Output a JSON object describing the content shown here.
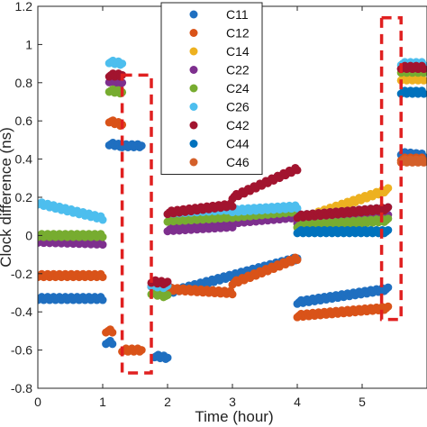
{
  "chart_data": {
    "type": "scatter",
    "title": "",
    "xlabel": "Time (hour)",
    "ylabel": "Clock difference (ns)",
    "xlim": [
      0,
      6
    ],
    "ylim": [
      -0.8,
      1.2
    ],
    "xticks": [
      0,
      1,
      2,
      3,
      4,
      5
    ],
    "yticks": [
      -0.8,
      -0.6,
      -0.4,
      -0.2,
      0,
      0.2,
      0.4,
      0.6,
      0.8,
      1,
      1.2
    ],
    "xtick_labels": [
      "0",
      "1",
      "2",
      "3",
      "4",
      "5"
    ],
    "ytick_labels": [
      "-0.8",
      "-0.6",
      "-0.4",
      "-0.2",
      "0",
      "0.2",
      "0.4",
      "0.6",
      "0.8",
      "1",
      "1.2"
    ],
    "grid": false,
    "legend_position": "top-center",
    "highlight_boxes": [
      {
        "x": [
          1.3,
          1.75
        ],
        "y": [
          -0.72,
          0.84
        ],
        "color": "#e02020"
      },
      {
        "x": [
          5.3,
          5.6
        ],
        "y": [
          -0.44,
          1.14
        ],
        "color": "#e02020"
      }
    ],
    "series": [
      {
        "name": "C11",
        "color": "#1f6fc0",
        "segments": [
          {
            "x": [
              0.0,
              1.0
            ],
            "y": [
              -0.33,
              -0.33
            ]
          },
          {
            "x": [
              1.05,
              1.15
            ],
            "y": [
              -0.56,
              -0.56
            ]
          },
          {
            "x": [
              1.1,
              1.3
            ],
            "y": [
              0.48,
              0.47
            ]
          },
          {
            "x": [
              1.3,
              1.6
            ],
            "y": [
              0.47,
              0.47
            ]
          },
          {
            "x": [
              1.8,
              2.0
            ],
            "y": [
              -0.63,
              -0.64
            ]
          },
          {
            "x": [
              2.0,
              4.0
            ],
            "y": [
              -0.3,
              -0.12
            ]
          },
          {
            "x": [
              4.0,
              5.4
            ],
            "y": [
              -0.35,
              -0.28
            ]
          },
          {
            "x": [
              5.6,
              5.95
            ],
            "y": [
              0.43,
              0.42
            ]
          }
        ]
      },
      {
        "name": "C12",
        "color": "#d95319",
        "segments": [
          {
            "x": [
              0.0,
              1.0
            ],
            "y": [
              -0.21,
              -0.21
            ]
          },
          {
            "x": [
              1.05,
              1.15
            ],
            "y": [
              -0.5,
              -0.5
            ]
          },
          {
            "x": [
              1.1,
              1.3
            ],
            "y": [
              0.6,
              0.58
            ]
          },
          {
            "x": [
              1.3,
              1.6
            ],
            "y": [
              -0.6,
              -0.6
            ]
          },
          {
            "x": [
              1.75,
              2.0
            ],
            "y": [
              -0.26,
              -0.3
            ]
          },
          {
            "x": [
              2.0,
              3.0
            ],
            "y": [
              -0.28,
              -0.3
            ]
          },
          {
            "x": [
              3.0,
              4.0
            ],
            "y": [
              -0.25,
              -0.12
            ]
          },
          {
            "x": [
              4.0,
              5.4
            ],
            "y": [
              -0.42,
              -0.38
            ]
          },
          {
            "x": [
              5.6,
              5.95
            ],
            "y": [
              0.4,
              0.4
            ]
          }
        ]
      },
      {
        "name": "C14",
        "color": "#edb120",
        "segments": [
          {
            "x": [
              4.0,
              5.4
            ],
            "y": [
              0.08,
              0.24
            ]
          },
          {
            "x": [
              5.6,
              5.95
            ],
            "y": [
              0.82,
              0.82
            ]
          }
        ]
      },
      {
        "name": "C22",
        "color": "#7e2f8e",
        "segments": [
          {
            "x": [
              0.0,
              1.0
            ],
            "y": [
              -0.03,
              -0.04
            ]
          },
          {
            "x": [
              1.1,
              1.3
            ],
            "y": [
              0.81,
              0.8
            ]
          },
          {
            "x": [
              1.75,
              2.0
            ],
            "y": [
              -0.26,
              -0.26
            ]
          },
          {
            "x": [
              2.0,
              3.0
            ],
            "y": [
              0.03,
              0.05
            ]
          },
          {
            "x": [
              3.0,
              4.0
            ],
            "y": [
              0.07,
              0.1
            ]
          },
          {
            "x": [
              4.0,
              5.4
            ],
            "y": [
              0.07,
              0.1
            ]
          },
          {
            "x": [
              5.6,
              5.95
            ],
            "y": [
              0.88,
              0.88
            ]
          }
        ]
      },
      {
        "name": "C24",
        "color": "#77ac30",
        "segments": [
          {
            "x": [
              0.0,
              1.0
            ],
            "y": [
              0.0,
              0.0
            ]
          },
          {
            "x": [
              1.1,
              1.3
            ],
            "y": [
              0.76,
              0.75
            ]
          },
          {
            "x": [
              1.75,
              2.0
            ],
            "y": [
              -0.3,
              -0.32
            ]
          },
          {
            "x": [
              2.0,
              3.0
            ],
            "y": [
              0.08,
              0.1
            ]
          },
          {
            "x": [
              3.0,
              4.0
            ],
            "y": [
              0.1,
              0.13
            ]
          },
          {
            "x": [
              4.0,
              5.4
            ],
            "y": [
              0.05,
              0.08
            ]
          },
          {
            "x": [
              5.6,
              5.95
            ],
            "y": [
              0.86,
              0.86
            ]
          }
        ]
      },
      {
        "name": "C26",
        "color": "#4dbeee",
        "segments": [
          {
            "x": [
              0.0,
              1.0
            ],
            "y": [
              0.17,
              0.09
            ]
          },
          {
            "x": [
              1.1,
              1.3
            ],
            "y": [
              0.91,
              0.9
            ]
          },
          {
            "x": [
              1.75,
              2.0
            ],
            "y": [
              -0.26,
              -0.27
            ]
          },
          {
            "x": [
              2.0,
              3.0
            ],
            "y": [
              0.12,
              0.14
            ]
          },
          {
            "x": [
              3.0,
              4.0
            ],
            "y": [
              0.13,
              0.15
            ]
          },
          {
            "x": [
              4.0,
              5.4
            ],
            "y": [
              0.1,
              0.14
            ]
          },
          {
            "x": [
              5.6,
              5.95
            ],
            "y": [
              0.9,
              0.9
            ]
          }
        ]
      },
      {
        "name": "C42",
        "color": "#a2142f",
        "segments": [
          {
            "x": [
              1.1,
              1.3
            ],
            "y": [
              0.84,
              0.84
            ]
          },
          {
            "x": [
              1.75,
              2.0
            ],
            "y": [
              -0.24,
              -0.25
            ]
          },
          {
            "x": [
              2.0,
              3.0
            ],
            "y": [
              0.12,
              0.16
            ]
          },
          {
            "x": [
              3.0,
              4.0
            ],
            "y": [
              0.2,
              0.35
            ]
          },
          {
            "x": [
              4.0,
              5.4
            ],
            "y": [
              0.1,
              0.14
            ]
          },
          {
            "x": [
              5.6,
              5.95
            ],
            "y": [
              0.88,
              0.88
            ]
          }
        ]
      },
      {
        "name": "C44",
        "color": "#0072bd",
        "segments": [
          {
            "x": [
              4.0,
              5.4
            ],
            "y": [
              0.02,
              0.02
            ]
          },
          {
            "x": [
              5.6,
              5.95
            ],
            "y": [
              0.75,
              0.75
            ]
          }
        ]
      },
      {
        "name": "C46",
        "color": "#d4602a",
        "segments": [
          {
            "x": [
              5.6,
              5.95
            ],
            "y": [
              0.39,
              0.39
            ]
          }
        ]
      }
    ]
  }
}
